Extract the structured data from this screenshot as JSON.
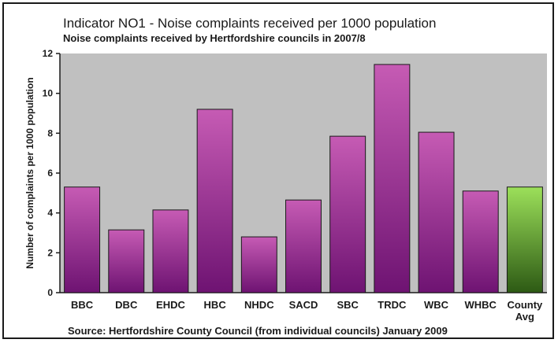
{
  "chart_data": {
    "type": "bar",
    "title": "Indicator NO1 - Noise complaints received per 1000 population",
    "subtitle": "Noise complaints received by Hertfordshire councils in 2007/8",
    "xlabel": "",
    "ylabel": "Number of complaints per 1000 population",
    "ylim": [
      0,
      12
    ],
    "yticks": [
      0,
      2,
      4,
      6,
      8,
      10,
      12
    ],
    "grid": false,
    "legend": "none",
    "categories": [
      "BBC",
      "DBC",
      "EHDC",
      "HBC",
      "NHDC",
      "SACD",
      "SBC",
      "TRDC",
      "WBC",
      "WHBC",
      "County Avg"
    ],
    "values": [
      5.3,
      3.15,
      4.15,
      9.2,
      2.8,
      4.65,
      7.85,
      11.45,
      8.05,
      5.1,
      5.3
    ],
    "source": "Source: Hertfordshire County Council (from individual councils) January 2009"
  },
  "colors": {
    "plot_background": "#c0c0c0",
    "bar_primary_top": "#c65bb4",
    "bar_primary_bottom": "#6e1372",
    "bar_highlight_top": "#9ce05a",
    "bar_highlight_bottom": "#2d5a14",
    "bar_outline": "#1a1a1a"
  }
}
